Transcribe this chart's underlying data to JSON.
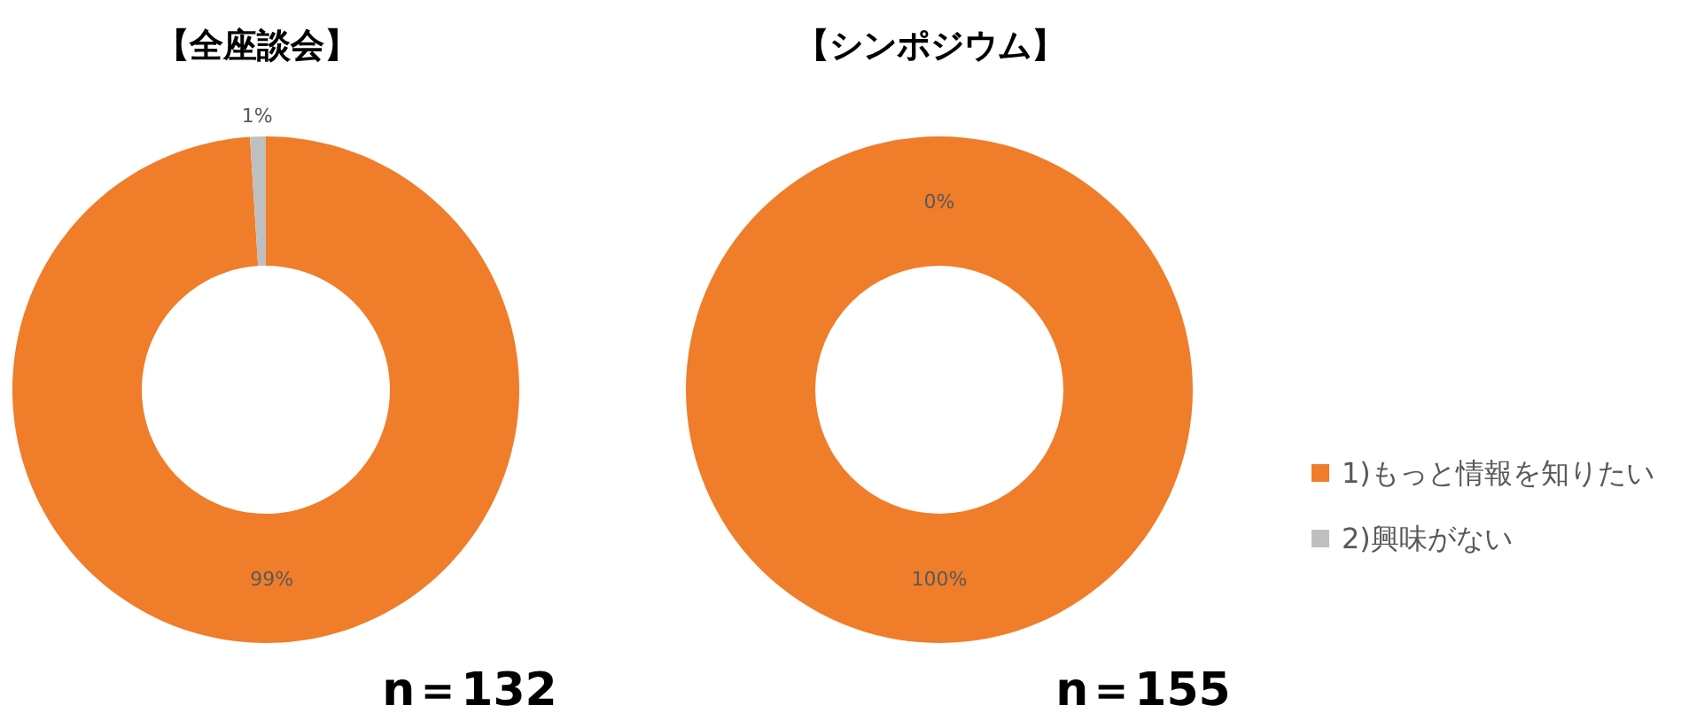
{
  "chart_data": [
    {
      "type": "donut",
      "title": "【全座談会】",
      "categories": [
        null,
        null
      ],
      "values": [
        99,
        1
      ],
      "colors": [
        "#f07d2a",
        "#bfbfbf"
      ],
      "value_labels": [
        "99%",
        "1%"
      ],
      "annotations": [
        "n＝132"
      ]
    },
    {
      "type": "donut",
      "title": "【シンポジウム】",
      "categories": [
        "1)もっと情報を知りたい",
        "2)興味がない"
      ],
      "values": [
        100,
        0
      ],
      "colors": [
        "#f07d2a",
        "#bfbfbf"
      ],
      "value_labels": [
        "100%",
        "0%"
      ],
      "legend": "right",
      "annotations": [
        "n＝155"
      ]
    }
  ]
}
